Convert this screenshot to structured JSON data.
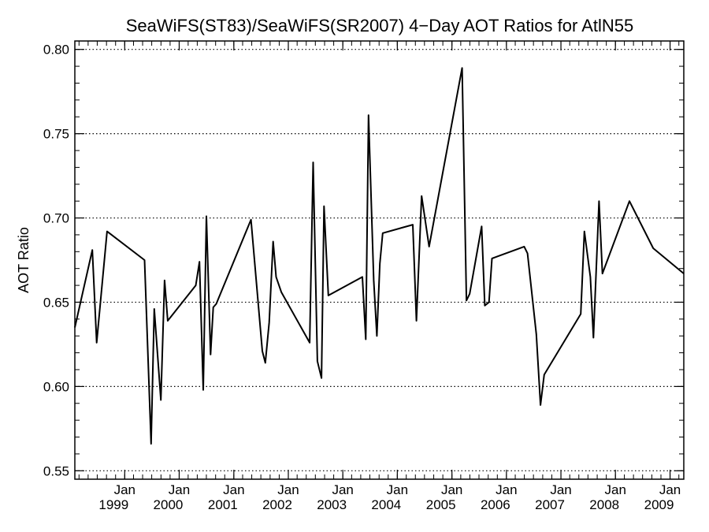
{
  "chart_data": {
    "type": "line",
    "title": "SeaWiFS(ST83)/SeaWiFS(SR2007) 4−Day AOT Ratios for AtlN55",
    "xlabel": "",
    "ylabel": "AOT Ratio",
    "ylim": [
      0.545,
      0.805
    ],
    "xlim": [
      "1998-02-01",
      "2009-04-03"
    ],
    "yticks": [
      0.55,
      0.6,
      0.65,
      0.7,
      0.75,
      0.8
    ],
    "ytick_labels": [
      "0.55",
      "0.60",
      "0.65",
      "0.70",
      "0.75",
      "0.80"
    ],
    "xticks": [
      {
        "date": "1999-01-01",
        "month": "Jan",
        "year": "1999"
      },
      {
        "date": "2000-01-01",
        "month": "Jan",
        "year": "2000"
      },
      {
        "date": "2001-01-01",
        "month": "Jan",
        "year": "2001"
      },
      {
        "date": "2002-01-01",
        "month": "Jan",
        "year": "2002"
      },
      {
        "date": "2003-01-01",
        "month": "Jan",
        "year": "2003"
      },
      {
        "date": "2004-01-01",
        "month": "Jan",
        "year": "2004"
      },
      {
        "date": "2005-01-01",
        "month": "Jan",
        "year": "2005"
      },
      {
        "date": "2006-01-01",
        "month": "Jan",
        "year": "2006"
      },
      {
        "date": "2007-01-01",
        "month": "Jan",
        "year": "2007"
      },
      {
        "date": "2008-01-01",
        "month": "Jan",
        "year": "2008"
      },
      {
        "date": "2009-01-01",
        "month": "Jan",
        "year": "2009"
      }
    ],
    "grid": "horizontal-dotted",
    "line_color": "#000000",
    "series": [
      {
        "x": [
          "1998-02-01",
          "1998-05-29",
          "1998-06-27",
          "1998-09-05",
          "1999-05-14",
          "1999-06-27",
          "1999-07-18",
          "1999-08-31",
          "1999-09-25",
          "1999-10-16",
          "2000-04-21",
          "2000-05-16",
          "2000-06-10",
          "2000-07-01",
          "2000-07-29",
          "2000-08-16",
          "2000-09-05",
          "2001-04-26",
          "2001-07-11",
          "2001-07-31",
          "2001-08-26",
          "2001-09-21",
          "2001-10-11",
          "2001-11-15",
          "2002-05-24",
          "2002-06-16",
          "2002-07-15",
          "2002-08-11",
          "2002-08-28",
          "2002-09-26",
          "2003-05-12",
          "2003-06-04",
          "2003-06-22",
          "2003-07-27",
          "2003-08-17",
          "2003-09-06",
          "2003-09-25",
          "2004-04-14",
          "2004-05-08",
          "2004-06-12",
          "2004-08-01",
          "2005-03-10",
          "2005-04-08",
          "2005-04-30",
          "2005-07-19",
          "2005-08-09",
          "2005-09-06",
          "2005-09-26",
          "2006-04-30",
          "2006-05-22",
          "2006-07-20",
          "2006-08-17",
          "2006-09-11",
          "2007-05-14",
          "2007-06-07",
          "2007-07-17",
          "2007-08-07",
          "2007-09-13",
          "2007-10-06",
          "2008-04-04",
          "2008-09-10",
          "2009-04-03"
        ],
        "y": [
          0.635,
          0.681,
          0.626,
          0.692,
          0.675,
          0.566,
          0.646,
          0.592,
          0.663,
          0.639,
          0.66,
          0.674,
          0.598,
          0.701,
          0.619,
          0.647,
          0.649,
          0.699,
          0.621,
          0.614,
          0.638,
          0.686,
          0.665,
          0.656,
          0.626,
          0.733,
          0.615,
          0.605,
          0.707,
          0.654,
          0.665,
          0.628,
          0.761,
          0.663,
          0.63,
          0.673,
          0.691,
          0.696,
          0.639,
          0.713,
          0.683,
          0.789,
          0.651,
          0.655,
          0.695,
          0.648,
          0.65,
          0.676,
          0.683,
          0.679,
          0.631,
          0.589,
          0.607,
          0.643,
          0.692,
          0.665,
          0.629,
          0.71,
          0.667,
          0.71,
          0.682,
          0.667
        ]
      }
    ]
  }
}
